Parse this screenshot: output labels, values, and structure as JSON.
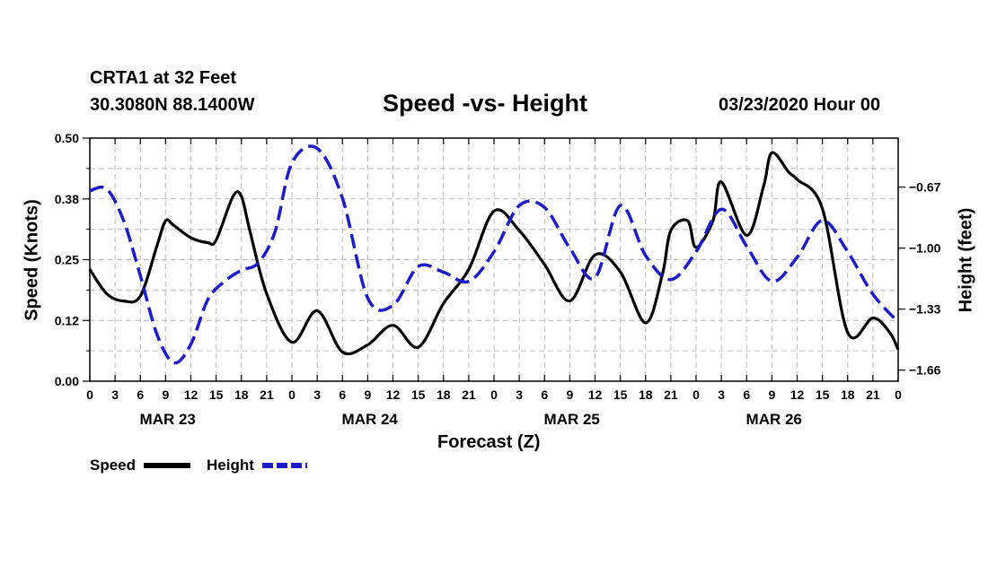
{
  "header": {
    "station": "CRTA1 at 32 Feet",
    "coords": "30.3080N 88.1400W",
    "title": "Speed -vs- Height",
    "datetime": "03/23/2020 Hour 00"
  },
  "legend": {
    "speed": "Speed",
    "height": "Height"
  },
  "colors": {
    "speed": "#000000",
    "height": "#1c1cc8",
    "grid": "#bdbdbd"
  },
  "chart_data": {
    "type": "line",
    "title": "Speed -vs- Height",
    "xlabel": "Forecast (Z)",
    "ylabel": "Speed (Knots)",
    "y2label": "Height (feet)",
    "xlim": [
      0,
      96
    ],
    "ylim": [
      0,
      0.5
    ],
    "y2lim": [
      -1.72,
      -0.405
    ],
    "x_ticks": [
      0,
      3,
      6,
      9,
      12,
      15,
      18,
      21,
      24,
      27,
      30,
      33,
      36,
      39,
      42,
      45,
      48,
      51,
      54,
      57,
      60,
      63,
      66,
      69,
      72,
      75,
      78,
      81,
      84,
      87,
      90,
      93,
      96
    ],
    "x_tick_labels": [
      "0",
      "3",
      "6",
      "9",
      "12",
      "15",
      "18",
      "21",
      "0",
      "3",
      "6",
      "9",
      "12",
      "15",
      "18",
      "21",
      "0",
      "3",
      "6",
      "9",
      "12",
      "15",
      "18",
      "21",
      "0",
      "3",
      "6",
      "9",
      "12",
      "15",
      "18",
      "21",
      "0"
    ],
    "day_labels": [
      {
        "label": "MAR 23",
        "x": 9.25
      },
      {
        "label": "MAR 24",
        "x": 33.25
      },
      {
        "label": "MAR 25",
        "x": 57.25
      },
      {
        "label": "MAR 26",
        "x": 81.25
      }
    ],
    "y_ticks": [
      0.0,
      0.125,
      0.25,
      0.375,
      0.5
    ],
    "y_tick_labels": [
      "0.00",
      "0.12",
      "0.25",
      "0.38",
      "0.50"
    ],
    "y2_ticks": [
      -0.67,
      -1.0,
      -1.33,
      -1.66
    ],
    "y2_tick_labels": [
      "−0.67",
      "−1.00",
      "−1.33",
      "−1.66"
    ],
    "grid": true,
    "series": [
      {
        "name": "Speed",
        "axis": "left",
        "style": "solid",
        "x": [
          0,
          2,
          4,
          6,
          8,
          9,
          10,
          12,
          14,
          15,
          17,
          18,
          19,
          21,
          24,
          27,
          30,
          33,
          36,
          39,
          42,
          45,
          48,
          51,
          54,
          57,
          60,
          63,
          66,
          68,
          69,
          71,
          72,
          74,
          75,
          78,
          80,
          81,
          83,
          84,
          87,
          90,
          93,
          95,
          96
        ],
        "y": [
          0.23,
          0.18,
          0.165,
          0.175,
          0.28,
          0.33,
          0.32,
          0.295,
          0.285,
          0.29,
          0.38,
          0.38,
          0.31,
          0.18,
          0.08,
          0.145,
          0.06,
          0.075,
          0.115,
          0.07,
          0.16,
          0.23,
          0.35,
          0.31,
          0.24,
          0.165,
          0.26,
          0.225,
          0.12,
          0.22,
          0.31,
          0.33,
          0.275,
          0.33,
          0.41,
          0.3,
          0.4,
          0.47,
          0.43,
          0.415,
          0.355,
          0.1,
          0.13,
          0.1,
          0.065
        ]
      },
      {
        "name": "Height",
        "axis": "right",
        "style": "dashed",
        "x": [
          0,
          2,
          4,
          6,
          8,
          10,
          12,
          14,
          16,
          18,
          20,
          22,
          24,
          27,
          30,
          33,
          36,
          39,
          42,
          45,
          48,
          51,
          54,
          57,
          60,
          63,
          66,
          69,
          72,
          75,
          78,
          81,
          84,
          87,
          90,
          93,
          96
        ],
        "y": [
          -0.69,
          -0.68,
          -0.85,
          -1.15,
          -1.47,
          -1.62,
          -1.52,
          -1.28,
          -1.18,
          -1.12,
          -1.08,
          -0.91,
          -0.54,
          -0.46,
          -0.73,
          -1.27,
          -1.31,
          -1.1,
          -1.13,
          -1.18,
          -1.02,
          -0.77,
          -0.78,
          -1.0,
          -1.16,
          -0.77,
          -1.04,
          -1.17,
          -1.02,
          -0.79,
          -0.99,
          -1.18,
          -1.05,
          -0.85,
          -1.02,
          -1.25,
          -1.4
        ]
      }
    ]
  }
}
